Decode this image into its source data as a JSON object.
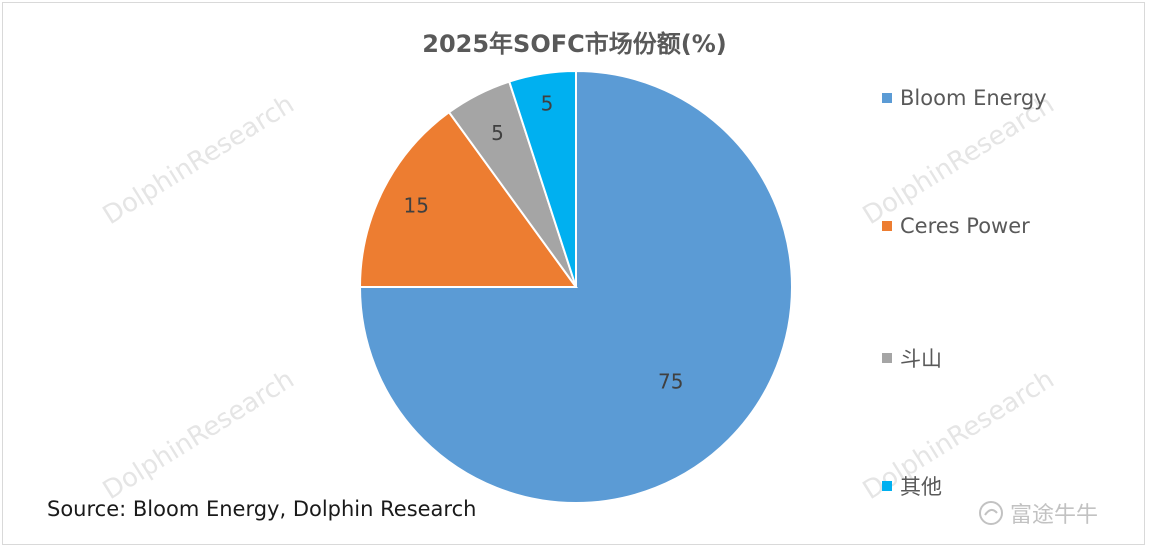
{
  "chart_data": {
    "type": "pie",
    "title": "2025年SOFC市场份额(%)",
    "categories": [
      "Bloom Energy",
      "Ceres Power",
      "斗山",
      "其他"
    ],
    "values": [
      75,
      15,
      5,
      5
    ],
    "colors": [
      "#5b9bd5",
      "#ed7d31",
      "#a5a5a5",
      "#00b0f0"
    ],
    "data_labels": [
      "75",
      "15",
      "5",
      "5"
    ],
    "legend_position": "right"
  },
  "source": "Source: Bloom Energy, Dolphin Research",
  "watermark": "DolphinResearch",
  "brand": {
    "name": "富途牛牛",
    "icon": "futu-logo-icon"
  }
}
